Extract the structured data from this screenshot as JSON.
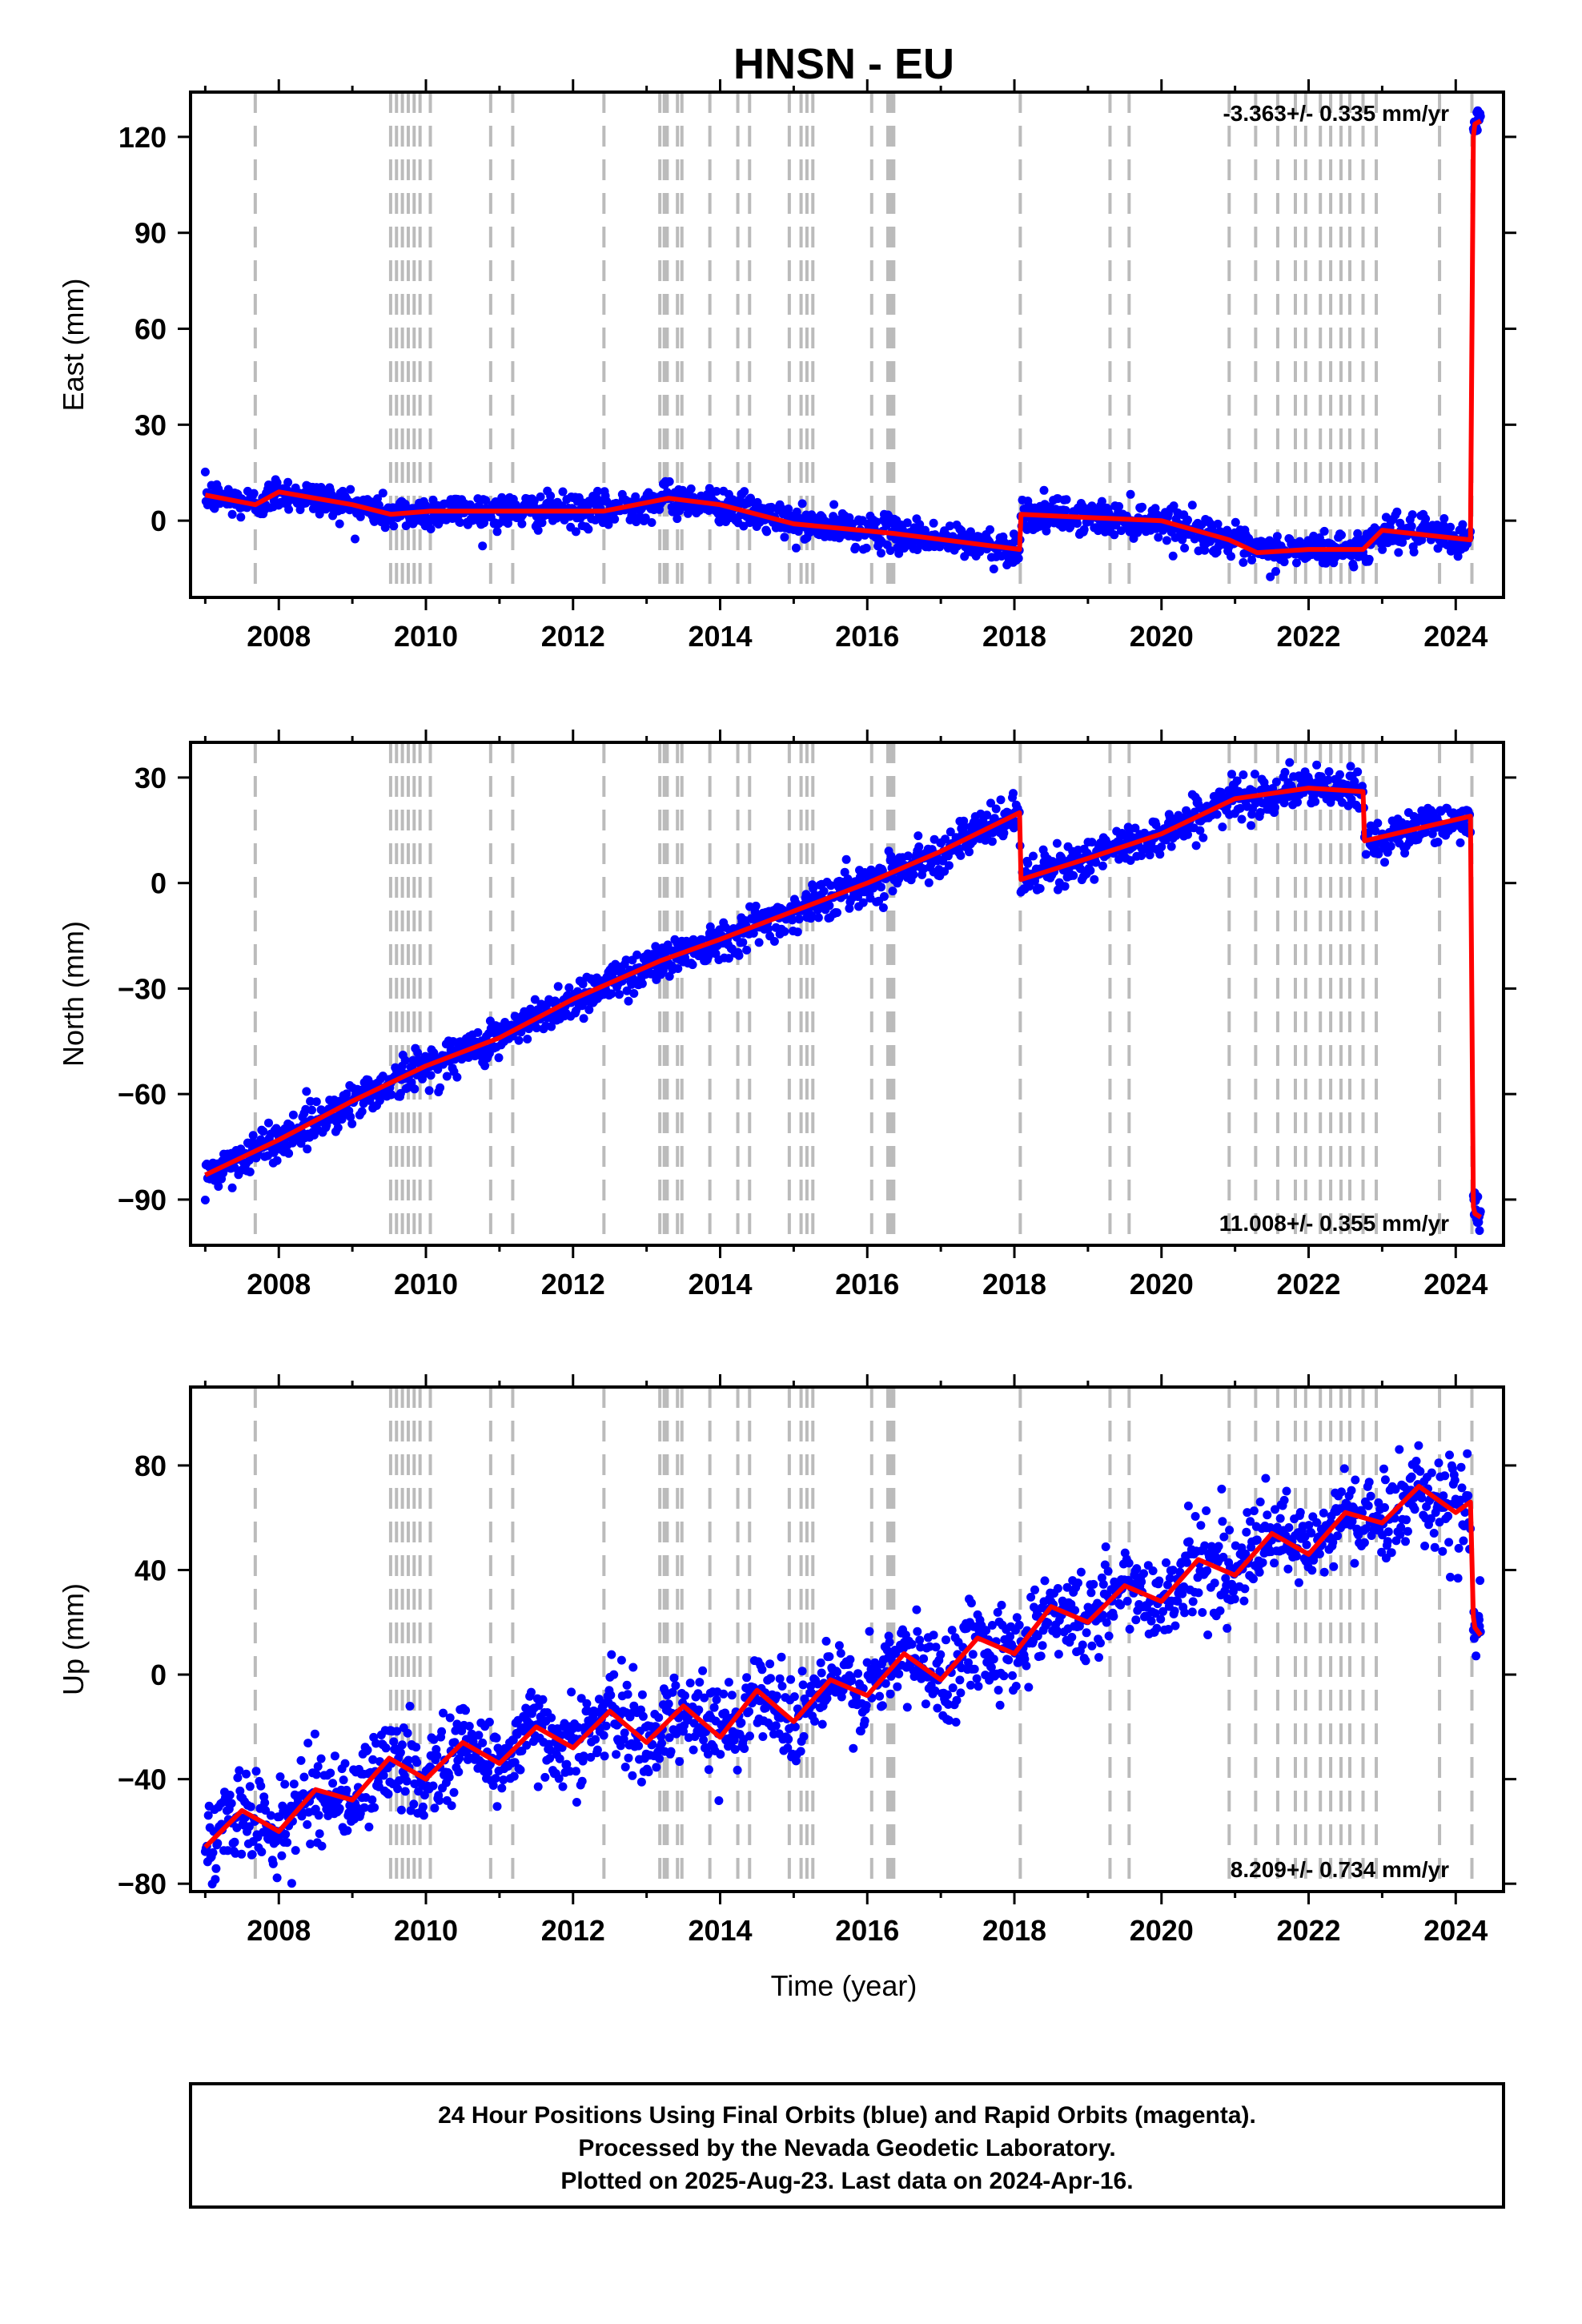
{
  "chart_data": {
    "type": "scatter",
    "title": "HNSN - EU",
    "xlabel": "Time (year)",
    "xlim": [
      2006.8,
      2024.65
    ],
    "x_ticks": [
      "2008",
      "2010",
      "2012",
      "2014",
      "2016",
      "2018",
      "2020",
      "2022",
      "2024"
    ],
    "x_tick_values": [
      2008,
      2010,
      2012,
      2014,
      2016,
      2018,
      2020,
      2022,
      2024
    ],
    "grid": false,
    "colors": {
      "final_orbits": "#0000ff",
      "fit": "#ff0000",
      "event_lines": "#bbbbbb",
      "frame": "#000000"
    },
    "event_lines": [
      2007.68,
      2009.52,
      2009.6,
      2009.68,
      2009.76,
      2009.84,
      2009.92,
      2010.06,
      2010.88,
      2011.18,
      2012.42,
      2013.18,
      2013.24,
      2013.28,
      2013.42,
      2013.48,
      2013.86,
      2014.24,
      2014.4,
      2014.94,
      2015.1,
      2015.18,
      2015.26,
      2016.06,
      2016.28,
      2016.32,
      2016.36,
      2018.08,
      2019.3,
      2019.56,
      2020.92,
      2021.28,
      2021.58,
      2021.82,
      2021.96,
      2022.16,
      2022.3,
      2022.44,
      2022.56,
      2022.74,
      2022.92,
      2023.78,
      2024.22
    ],
    "panels": [
      {
        "name": "east",
        "ylabel": "East (mm)",
        "ylim": [
          -24,
          134
        ],
        "y_ticks": [
          "0",
          "30",
          "60",
          "90",
          "120"
        ],
        "y_tick_values": [
          0,
          30,
          60,
          90,
          120
        ],
        "rate_text": "-3.363+/- 0.335 mm/yr",
        "rate_position": "top-right",
        "scatter_spread": 2.6,
        "model": {
          "x": [
            2007.0,
            2007.68,
            2008.0,
            2009.0,
            2009.52,
            2010.06,
            2011.18,
            2012.42,
            2013.3,
            2014.0,
            2015.0,
            2016.36,
            2018.07,
            2018.09,
            2019.0,
            2020.0,
            2020.92,
            2021.3,
            2022.0,
            2022.74,
            2023.0,
            2024.2,
            2024.24,
            2024.26,
            2024.34
          ],
          "y": [
            8,
            5,
            9,
            5,
            2,
            3,
            3,
            3,
            7,
            5,
            -1,
            -4,
            -9,
            2,
            1,
            0,
            -6,
            -10,
            -9,
            -9,
            -3,
            -6,
            120,
            124,
            125
          ]
        }
      },
      {
        "name": "north",
        "ylabel": "North (mm)",
        "ylim": [
          -103,
          40
        ],
        "y_ticks": [
          "−90",
          "−60",
          "−30",
          "0",
          "30"
        ],
        "y_tick_values": [
          -90,
          -60,
          -30,
          0,
          30
        ],
        "rate_text": "11.008+/- 0.355 mm/yr",
        "rate_position": "bottom-right",
        "scatter_spread": 2.8,
        "model": {
          "x": [
            2007.0,
            2008.0,
            2009.0,
            2010.0,
            2011.0,
            2012.0,
            2013.2,
            2014.0,
            2015.0,
            2016.0,
            2017.0,
            2018.07,
            2018.09,
            2019.0,
            2020.0,
            2021.0,
            2022.0,
            2022.74,
            2022.76,
            2024.2,
            2024.24,
            2024.26,
            2024.34
          ],
          "y": [
            -83,
            -73,
            -62,
            -52,
            -44,
            -33,
            -22,
            -16,
            -8,
            0,
            9,
            20,
            1,
            7,
            14,
            24,
            27,
            26,
            12,
            19,
            -92,
            -94,
            -95
          ]
        }
      },
      {
        "name": "up",
        "ylabel": "Up (mm)",
        "ylim": [
          -83,
          110
        ],
        "y_ticks": [
          "−80",
          "−40",
          "0",
          "40",
          "80"
        ],
        "y_tick_values": [
          -80,
          -40,
          0,
          40,
          80
        ],
        "rate_text": "8.209+/- 0.734 mm/yr",
        "rate_position": "bottom-right",
        "scatter_spread": 8.5,
        "model": {
          "x": [
            2007.0,
            2007.5,
            2008.0,
            2008.5,
            2009.0,
            2009.5,
            2010.0,
            2010.5,
            2011.0,
            2011.5,
            2012.0,
            2012.5,
            2013.0,
            2013.5,
            2014.0,
            2014.5,
            2015.0,
            2015.5,
            2016.0,
            2016.5,
            2017.0,
            2017.5,
            2018.0,
            2018.5,
            2019.0,
            2019.5,
            2020.0,
            2020.5,
            2021.0,
            2021.5,
            2022.0,
            2022.5,
            2023.0,
            2023.5,
            2024.0,
            2024.2,
            2024.24,
            2024.26,
            2024.34
          ],
          "y": [
            -66,
            -52,
            -60,
            -44,
            -48,
            -32,
            -40,
            -26,
            -34,
            -20,
            -28,
            -14,
            -26,
            -12,
            -24,
            -6,
            -18,
            -2,
            -8,
            8,
            -2,
            14,
            8,
            26,
            20,
            34,
            28,
            44,
            38,
            54,
            46,
            62,
            58,
            72,
            62,
            66,
            22,
            18,
            15
          ]
        }
      }
    ]
  },
  "footer": {
    "line1": "24 Hour Positions Using Final Orbits (blue) and Rapid Orbits (magenta).",
    "line2": "Processed by the Nevada Geodetic Laboratory.",
    "line3": "Plotted on 2025-Aug-23. Last data on 2024-Apr-16."
  }
}
